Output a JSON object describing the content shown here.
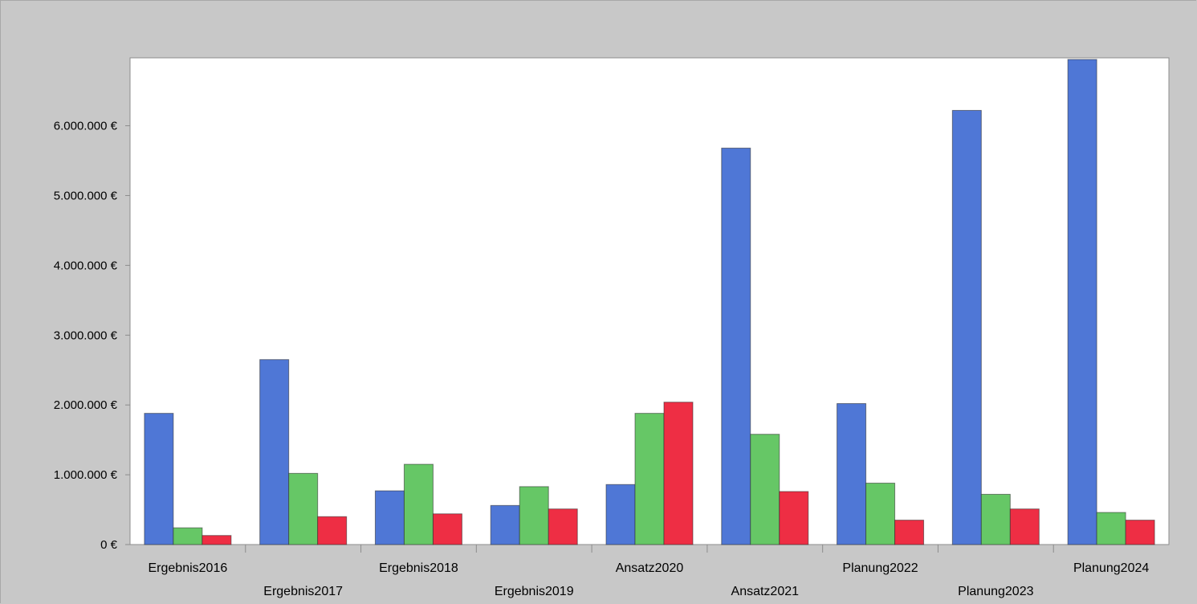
{
  "chart_data": {
    "type": "bar",
    "title": "",
    "xlabel": "",
    "ylabel": "",
    "ylim": [
      0,
      6950000
    ],
    "yticks": [
      0,
      1000000,
      2000000,
      3000000,
      4000000,
      5000000,
      6000000
    ],
    "ytick_labels": [
      "0 €",
      "1.000.000 €",
      "2.000.000 €",
      "3.000.000 €",
      "4.000.000 €",
      "5.000.000 €",
      "6.000.000 €"
    ],
    "categories": [
      "Ergebnis2016",
      "Ergebnis2017",
      "Ergebnis2018",
      "Ergebnis2019",
      "Ansatz2020",
      "Ansatz2021",
      "Planung2022",
      "Planung2023",
      "Planung2024"
    ],
    "series": [
      {
        "values": [
          1880000,
          2650000,
          770000,
          560000,
          860000,
          5680000,
          2020000,
          6220000,
          6950000
        ],
        "color": "#4f77d6"
      },
      {
        "values": [
          240000,
          1020000,
          1150000,
          830000,
          1880000,
          1580000,
          880000,
          720000,
          460000
        ],
        "color": "#66c766"
      },
      {
        "values": [
          130000,
          400000,
          440000,
          510000,
          2040000,
          760000,
          350000,
          510000,
          350000
        ],
        "color": "#ee2e44"
      }
    ],
    "grid": false,
    "legend": "none"
  }
}
